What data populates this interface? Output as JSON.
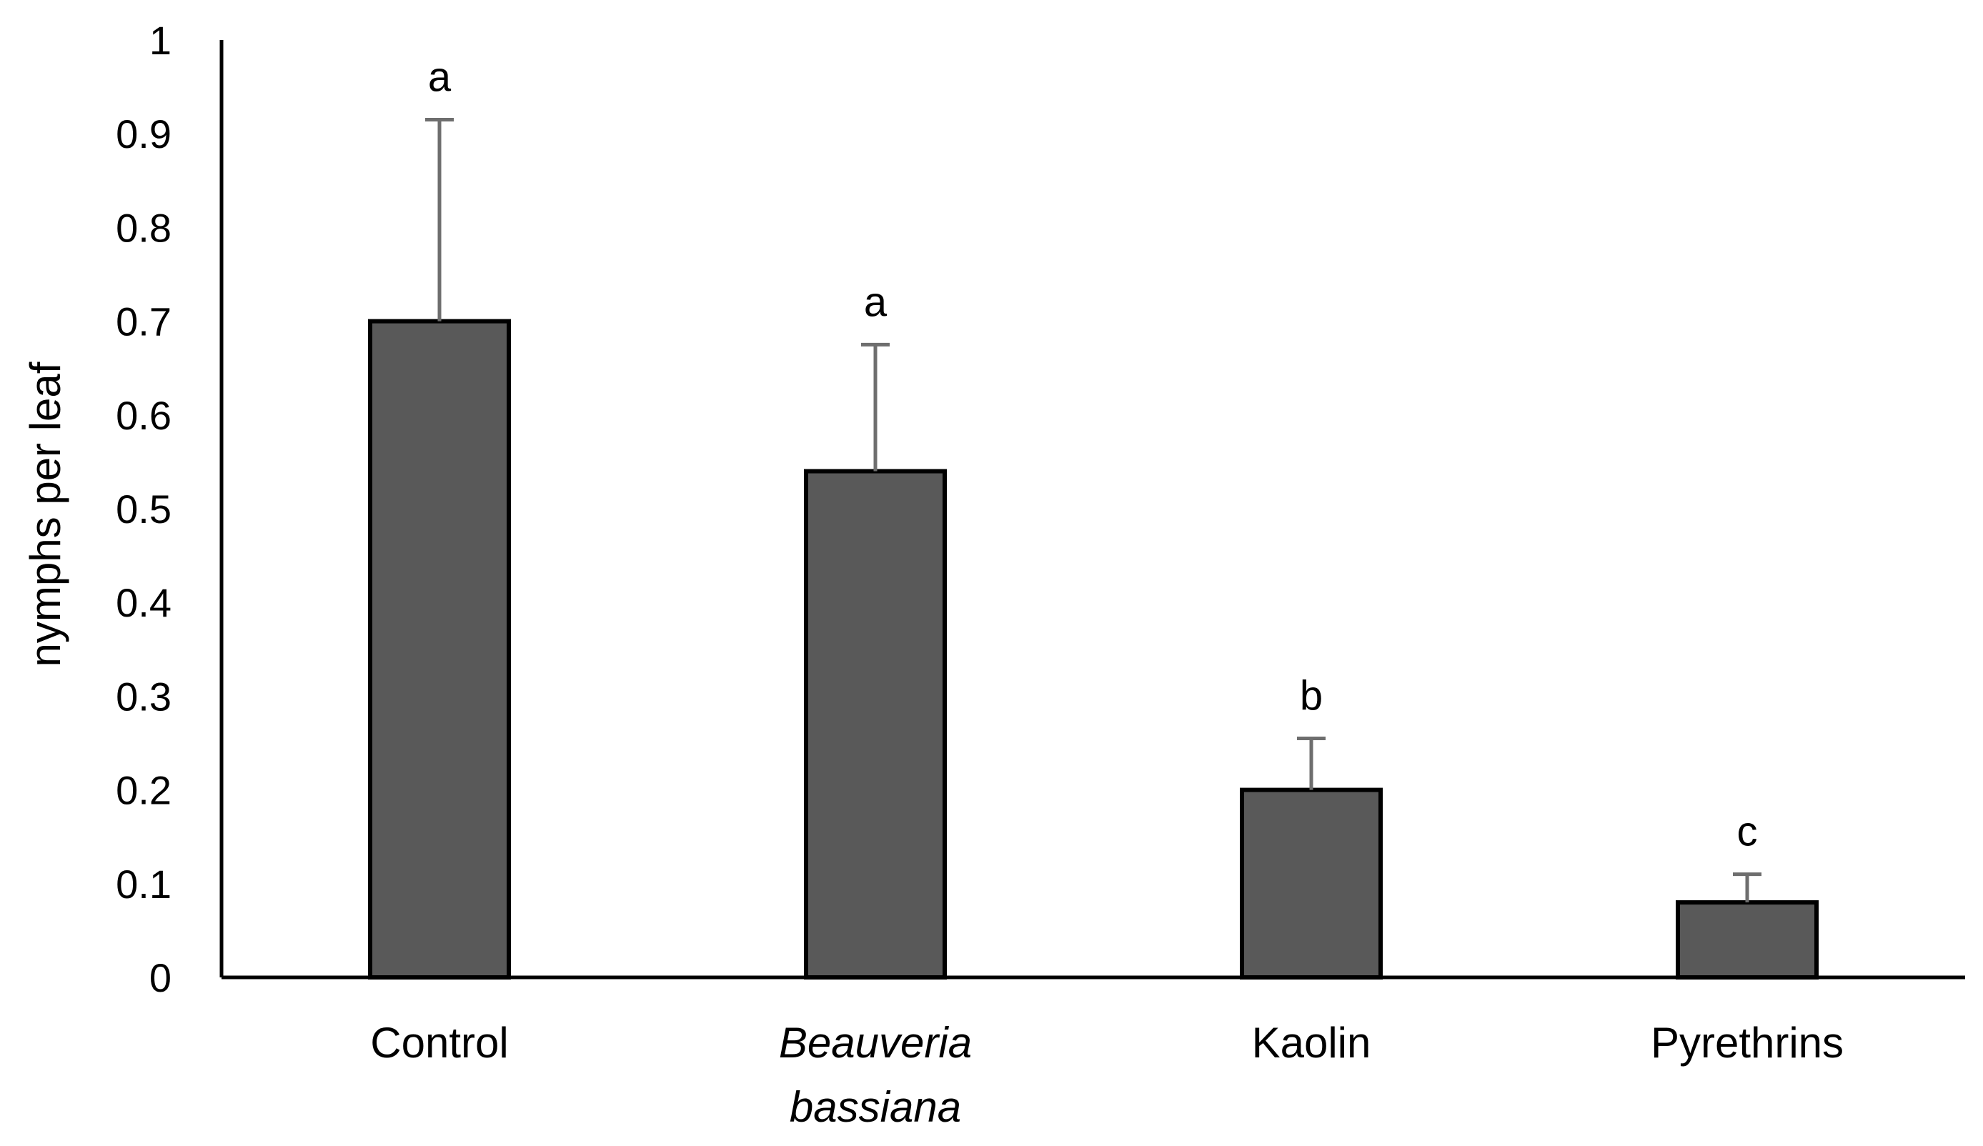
{
  "chart_data": {
    "type": "bar",
    "title": "",
    "xlabel": "",
    "ylabel": "nymphs per leaf",
    "ylim": [
      0,
      1
    ],
    "yticks": [
      "0",
      "0.1",
      "0.2",
      "0.3",
      "0.4",
      "0.5",
      "0.6",
      "0.7",
      "0.8",
      "0.9",
      "1"
    ],
    "categories": [
      {
        "lines": [
          "Control"
        ],
        "italic": false
      },
      {
        "lines": [
          "Beauveria",
          "bassiana"
        ],
        "italic": true
      },
      {
        "lines": [
          "Kaolin"
        ],
        "italic": false
      },
      {
        "lines": [
          "Pyrethrins"
        ],
        "italic": false
      }
    ],
    "values": [
      0.7,
      0.54,
      0.2,
      0.08
    ],
    "error_upper": [
      0.915,
      0.675,
      0.255,
      0.11
    ],
    "significance_letters": [
      "a",
      "a",
      "b",
      "c"
    ],
    "bar_color": "#595959",
    "bar_edge_color": "#000000",
    "error_bar_color": "#6e6e6e",
    "grid": false
  }
}
